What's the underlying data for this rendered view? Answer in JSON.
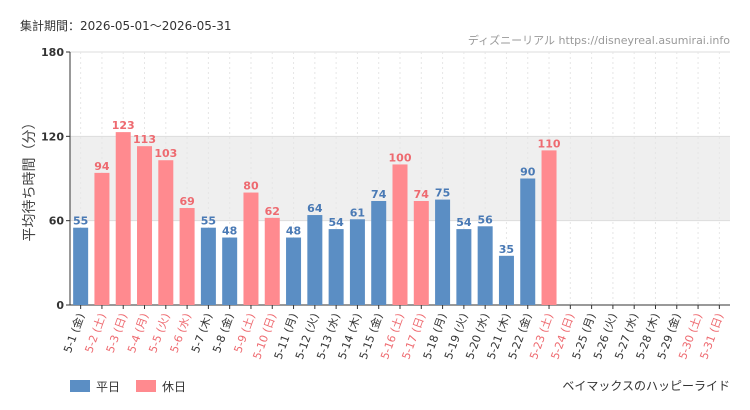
{
  "header": {
    "period_label": "集計期間：2026-05-01～2026-05-31",
    "source": "ディズニーリアル https://disneyreal.asumirai.info"
  },
  "attraction": "ベイマックスのハッピーライド",
  "colors": {
    "weekday": "#5b8ec4",
    "holiday": "#ff8a8f",
    "weekday_text": "#4a7ab5",
    "holiday_text": "#ee6a70",
    "band": "#efefef",
    "grid": "#dddddd",
    "axis": "#333333"
  },
  "chart_data": {
    "type": "bar",
    "ylabel": "平均待ち時間（分）",
    "ylim": [
      0,
      180
    ],
    "yticks": [
      0,
      60,
      120,
      180
    ],
    "band_range": [
      60,
      120
    ],
    "legend_placement": "bottom-left",
    "categories": [
      "5-1 (金)",
      "5-2 (土)",
      "5-3 (日)",
      "5-4 (月)",
      "5-5 (火)",
      "5-6 (水)",
      "5-7 (木)",
      "5-8 (金)",
      "5-9 (土)",
      "5-10 (日)",
      "5-11 (月)",
      "5-12 (火)",
      "5-13 (水)",
      "5-14 (木)",
      "5-15 (金)",
      "5-16 (土)",
      "5-17 (日)",
      "5-18 (月)",
      "5-19 (火)",
      "5-20 (水)",
      "5-21 (木)",
      "5-22 (金)",
      "5-23 (土)",
      "5-24 (日)",
      "5-25 (月)",
      "5-26 (火)",
      "5-27 (水)",
      "5-28 (木)",
      "5-29 (金)",
      "5-30 (土)",
      "5-31 (日)"
    ],
    "day_type": [
      "weekday",
      "holiday",
      "holiday",
      "holiday",
      "holiday",
      "holiday",
      "weekday",
      "weekday",
      "holiday",
      "holiday",
      "weekday",
      "weekday",
      "weekday",
      "weekday",
      "weekday",
      "holiday",
      "holiday",
      "weekday",
      "weekday",
      "weekday",
      "weekday",
      "weekday",
      "holiday",
      "holiday",
      "weekday",
      "weekday",
      "weekday",
      "weekday",
      "weekday",
      "holiday",
      "holiday"
    ],
    "values": [
      55,
      94,
      123,
      113,
      103,
      69,
      55,
      48,
      80,
      62,
      48,
      64,
      54,
      61,
      74,
      100,
      74,
      75,
      54,
      56,
      35,
      90,
      110,
      null,
      null,
      null,
      null,
      null,
      null,
      null,
      null
    ],
    "series": [
      {
        "name": "平日",
        "key": "weekday"
      },
      {
        "name": "休日",
        "key": "holiday"
      }
    ]
  }
}
